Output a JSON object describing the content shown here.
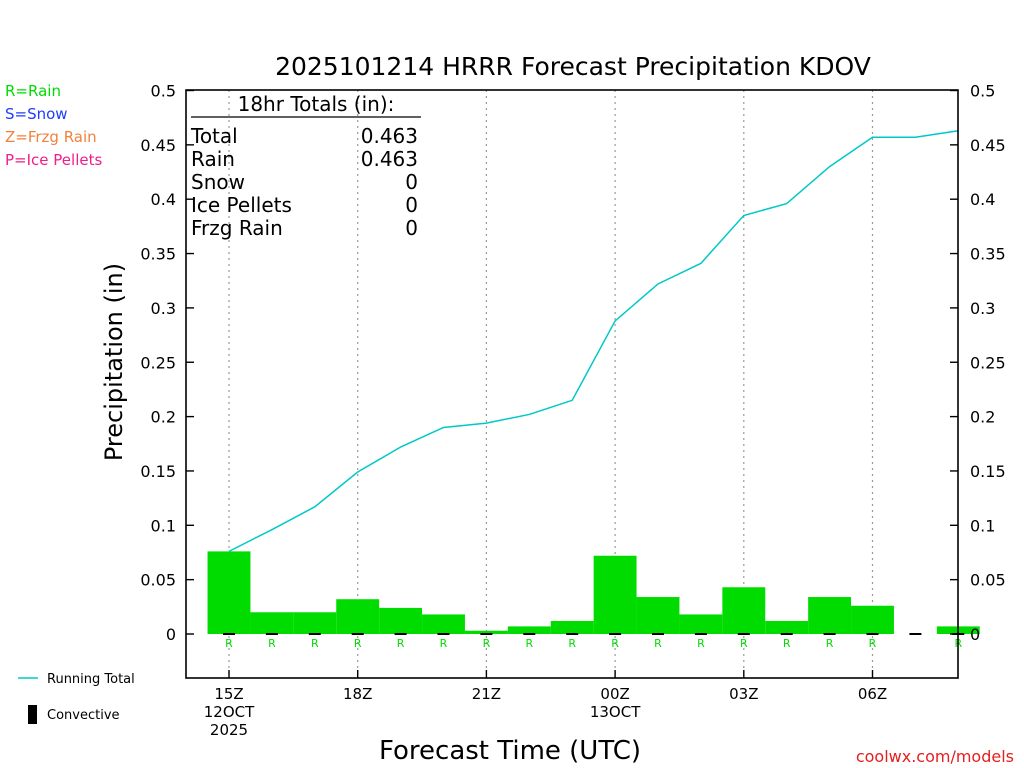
{
  "chart_data": {
    "type": "bar",
    "title": "2025101214 HRRR Forecast Precipitation KDOV",
    "xlabel": "Forecast Time (UTC)",
    "ylabel": "Precipitation (in)",
    "ylim": [
      -0.04,
      0.5
    ],
    "yticks": [
      "0",
      "0.05",
      "0.1",
      "0.15",
      "0.2",
      "0.25",
      "0.3",
      "0.35",
      "0.4",
      "0.45",
      "0.5"
    ],
    "x_range_hours": [
      -1,
      17
    ],
    "x_ticks": [
      {
        "hour": 0,
        "lines": [
          "15Z",
          "12OCT",
          "2025"
        ]
      },
      {
        "hour": 3,
        "lines": [
          "18Z"
        ]
      },
      {
        "hour": 6,
        "lines": [
          "21Z"
        ]
      },
      {
        "hour": 9,
        "lines": [
          "00Z",
          "13OCT"
        ]
      },
      {
        "hour": 12,
        "lines": [
          "03Z"
        ]
      },
      {
        "hour": 15,
        "lines": [
          "06Z"
        ]
      }
    ],
    "hours": [
      0,
      1,
      2,
      3,
      4,
      5,
      6,
      7,
      8,
      9,
      10,
      11,
      12,
      13,
      14,
      15,
      16,
      17
    ],
    "hourly_precip": [
      0.076,
      0.02,
      0.02,
      0.032,
      0.024,
      0.018,
      0.003,
      0.007,
      0.012,
      0.072,
      0.034,
      0.018,
      0.043,
      0.012,
      0.034,
      0.026,
      0.0,
      0.007
    ],
    "precip_type": [
      "R",
      "R",
      "R",
      "R",
      "R",
      "R",
      "R",
      "R",
      "R",
      "R",
      "R",
      "R",
      "R",
      "R",
      "R",
      "R",
      "",
      "R"
    ],
    "convective": [
      0,
      0,
      0,
      0,
      0,
      0,
      0,
      0,
      0,
      0,
      0,
      0,
      0,
      0,
      0,
      0,
      0,
      0
    ],
    "running_total": [
      0.076,
      0.096,
      0.117,
      0.149,
      0.172,
      0.19,
      0.194,
      0.202,
      0.215,
      0.288,
      0.322,
      0.341,
      0.385,
      0.396,
      0.43,
      0.457,
      0.457,
      0.463
    ],
    "totals": {
      "header": "18hr Totals (in):",
      "rows": [
        {
          "label": "Total",
          "value": "0.463"
        },
        {
          "label": "Rain",
          "value": "0.463"
        },
        {
          "label": "Snow",
          "value": "0"
        },
        {
          "label": "Ice Pellets",
          "value": "0"
        },
        {
          "label": "Frzg Rain",
          "value": "0"
        }
      ]
    },
    "type_legend": [
      {
        "text": "R=Rain",
        "color": "#00dc00"
      },
      {
        "text": "S=Snow",
        "color": "#1e3cff"
      },
      {
        "text": "Z=Frzg Rain",
        "color": "#f0823c"
      },
      {
        "text": "P=Ice Pellets",
        "color": "#f01e8c"
      }
    ],
    "series_legend": [
      {
        "text": "Running Total",
        "color": "#00c8c8",
        "kind": "line"
      },
      {
        "text": "Convective",
        "color": "#000000",
        "kind": "box"
      }
    ],
    "colors": {
      "bar": "#00dc00",
      "running": "#00c8c8",
      "rain_label": "#00dc00"
    },
    "credit": {
      "text": "coolwx.com/models",
      "color": "#e61e1e"
    }
  }
}
